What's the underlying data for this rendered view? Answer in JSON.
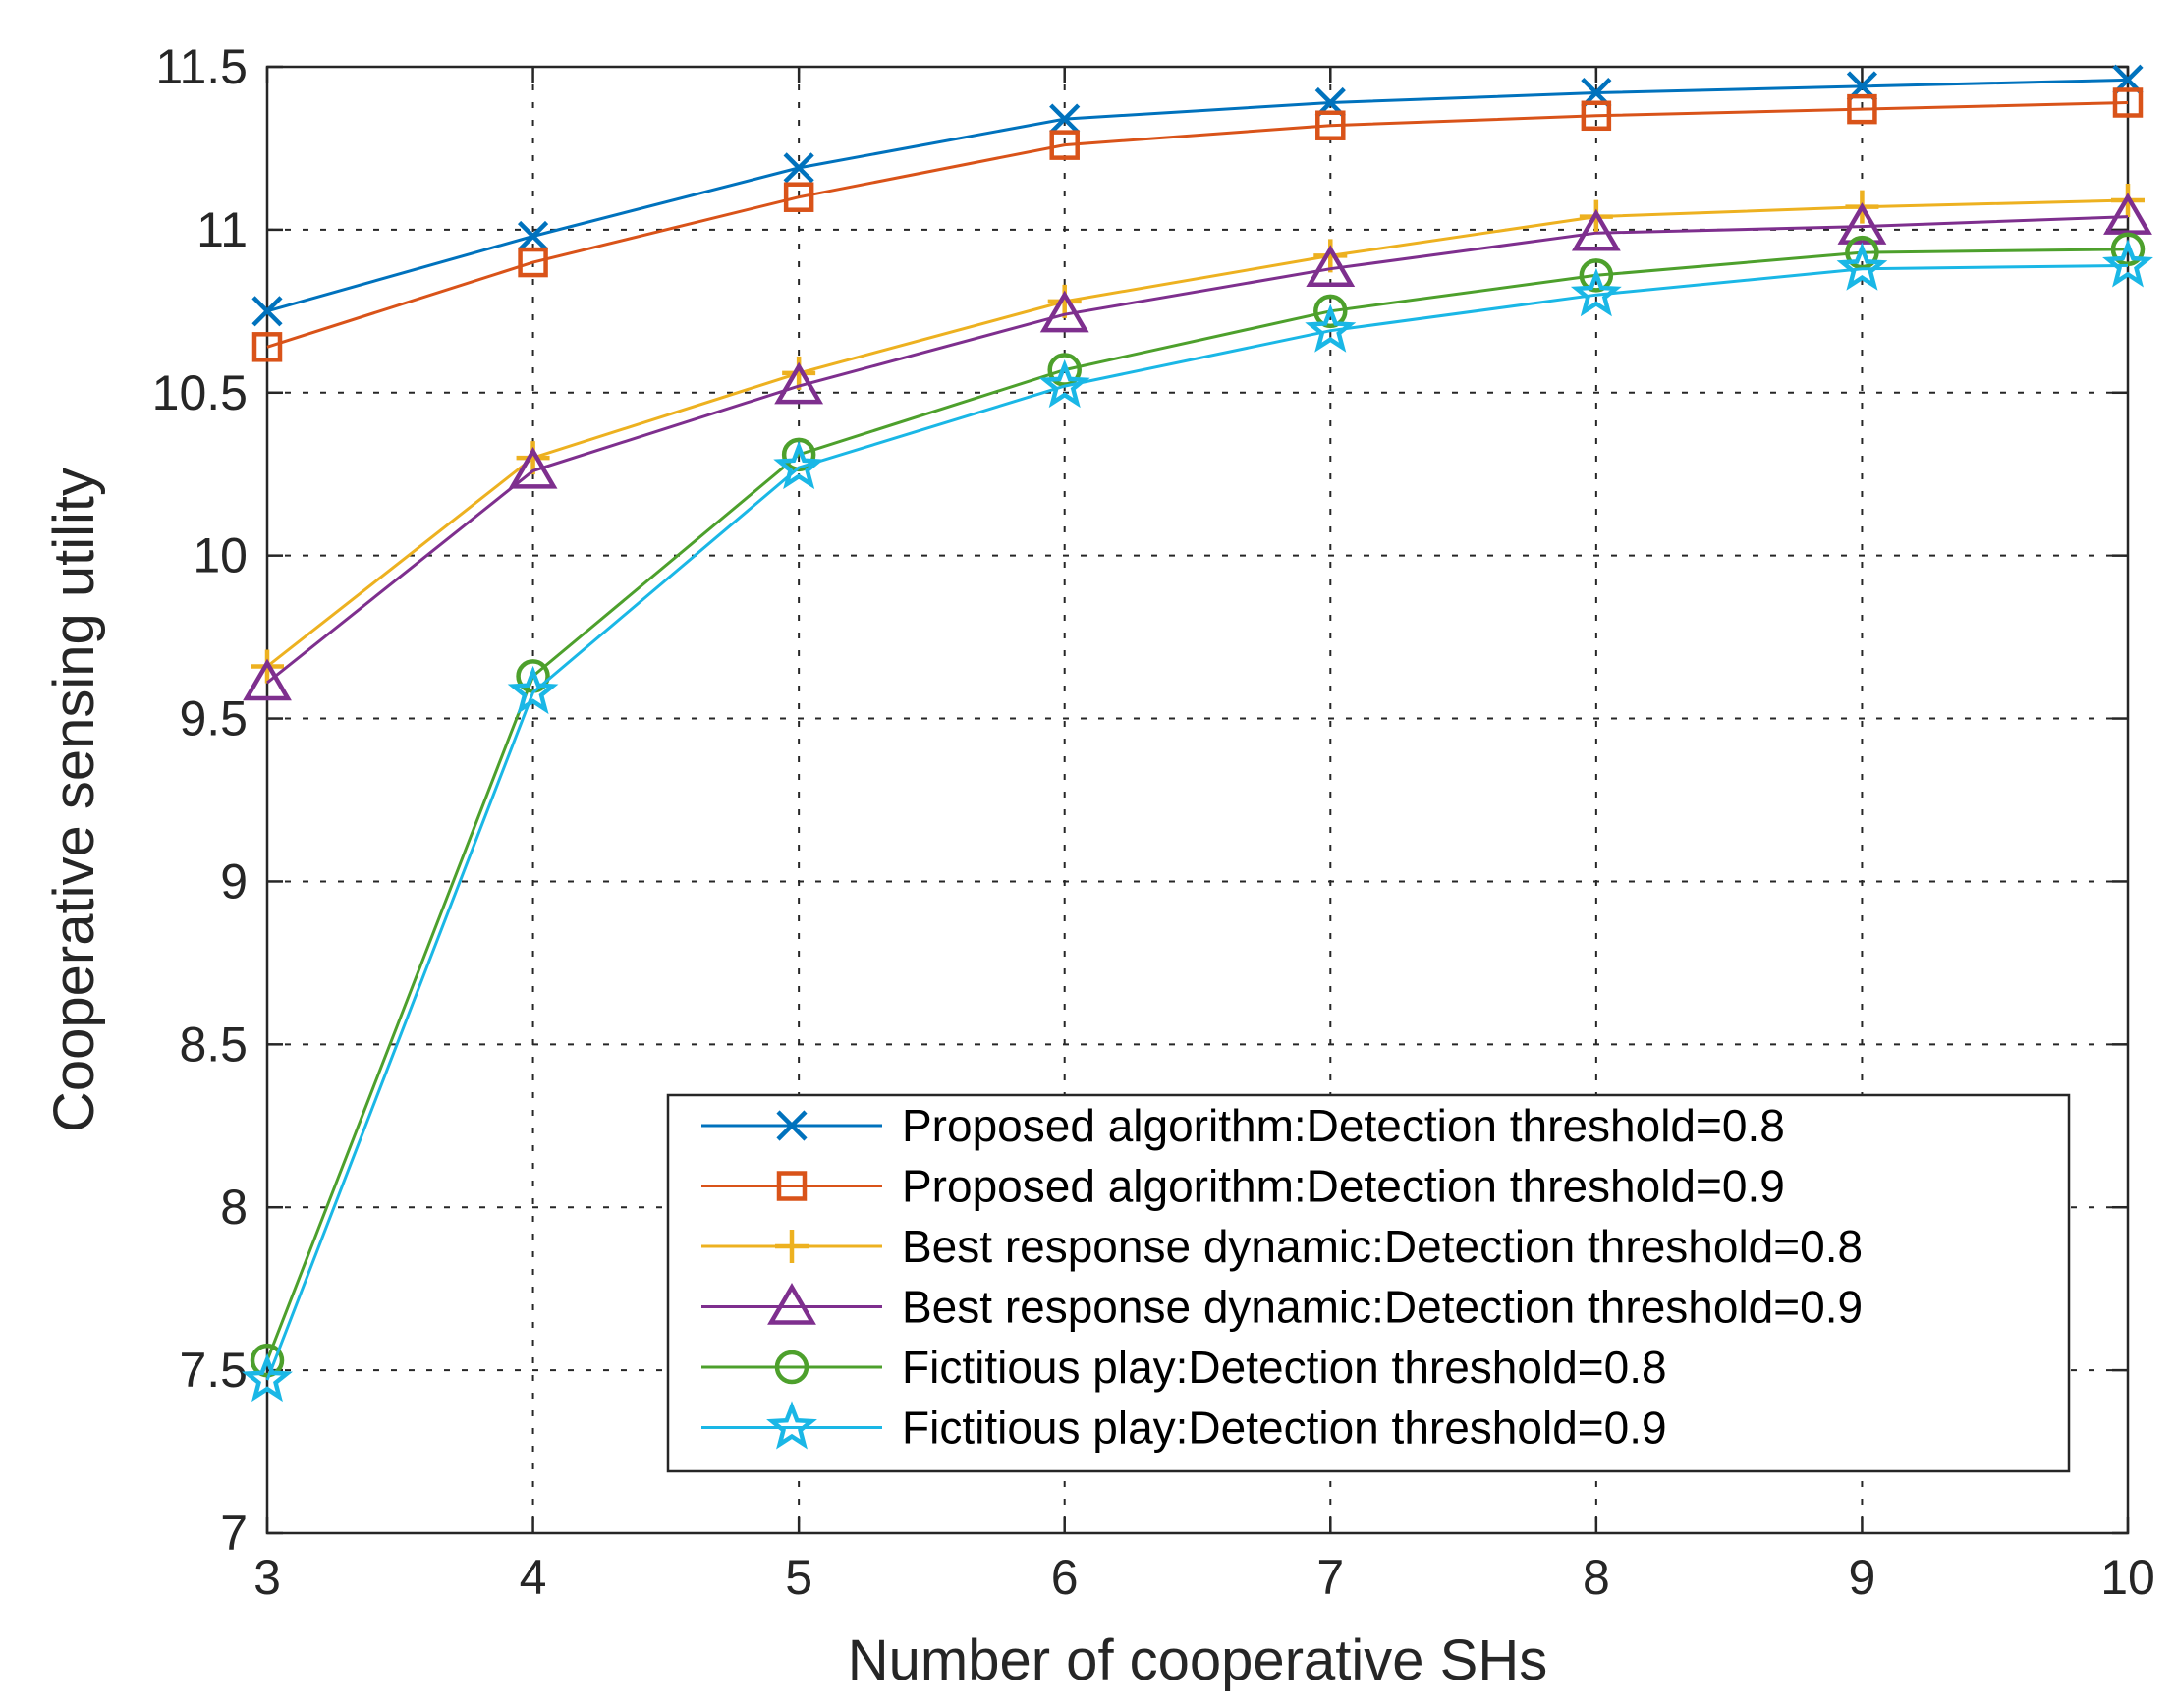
{
  "chart_data": {
    "type": "line",
    "title": "",
    "xlabel": "Number of cooperative SHs",
    "ylabel": "Cooperative sensing utility",
    "xlim": [
      3,
      10
    ],
    "ylim": [
      7,
      11.5
    ],
    "grid": true,
    "legend_position": "bottom-right",
    "x": [
      3,
      4,
      5,
      6,
      7,
      8,
      9,
      10
    ],
    "xticks": [
      "3",
      "4",
      "5",
      "6",
      "7",
      "8",
      "9",
      "10"
    ],
    "yticks": [
      "7",
      "7.5",
      "8",
      "8.5",
      "9",
      "9.5",
      "10",
      "10.5",
      "11",
      "11.5"
    ],
    "series": [
      {
        "name": "Proposed algorithm:Detection threshold=0.8",
        "marker": "x",
        "color": "#0072BD",
        "values": [
          10.75,
          10.98,
          11.19,
          11.34,
          11.39,
          11.42,
          11.44,
          11.46
        ]
      },
      {
        "name": "Proposed algorithm:Detection threshold=0.9",
        "marker": "square",
        "color": "#D95319",
        "values": [
          10.64,
          10.9,
          11.1,
          11.26,
          11.32,
          11.35,
          11.37,
          11.39
        ]
      },
      {
        "name": "Best response dynamic:Detection threshold=0.8",
        "marker": "plus",
        "color": "#EDB120",
        "values": [
          9.66,
          10.3,
          10.56,
          10.78,
          10.92,
          11.04,
          11.07,
          11.09
        ]
      },
      {
        "name": "Best response dynamic:Detection threshold=0.9",
        "marker": "triangle",
        "color": "#7E2F8E",
        "values": [
          9.61,
          10.26,
          10.52,
          10.74,
          10.88,
          10.99,
          11.01,
          11.04
        ]
      },
      {
        "name": "Fictitious play:Detection threshold=0.8",
        "marker": "circle",
        "color": "#4DA02C",
        "values": [
          7.53,
          9.63,
          10.31,
          10.57,
          10.75,
          10.86,
          10.93,
          10.94
        ]
      },
      {
        "name": "Fictitious play:Detection threshold=0.9",
        "marker": "star",
        "color": "#1AB7E6",
        "values": [
          7.47,
          9.58,
          10.27,
          10.52,
          10.69,
          10.8,
          10.88,
          10.89
        ]
      }
    ]
  }
}
